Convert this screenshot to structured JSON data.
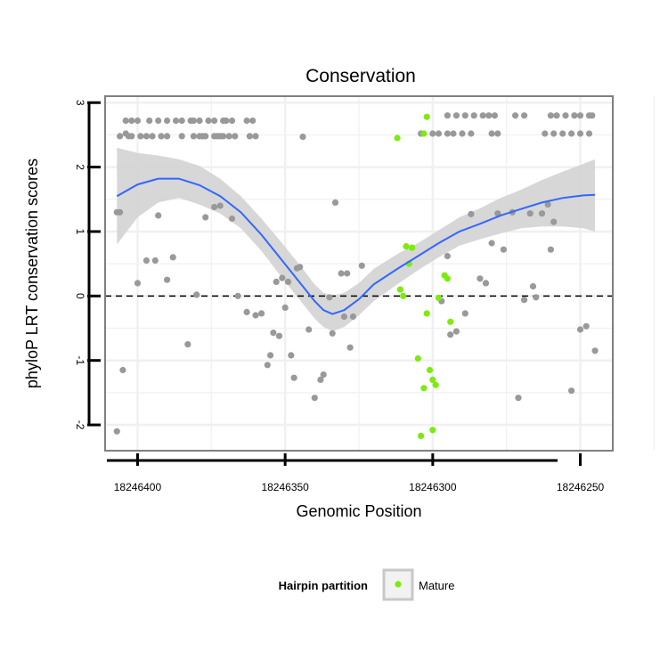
{
  "chart_data": {
    "type": "scatter",
    "title": "Conservation",
    "xlabel": "Genomic Position",
    "ylabel": "phyloP LRT conservation scores",
    "x_reversed": true,
    "xlim": [
      18246411,
      18246239
    ],
    "ylim": [
      -2.4,
      3.1
    ],
    "x_ticks": [
      18246400,
      18246350,
      18246300,
      18246250
    ],
    "x_tick_labels": [
      "18246400",
      "18246350",
      "18246300",
      "18246250"
    ],
    "y_ticks": [
      -2,
      -1,
      0,
      1,
      2,
      3
    ],
    "y_tick_labels": [
      "-2",
      "-1",
      "0",
      "1",
      "2",
      "3"
    ],
    "grid": true,
    "reference_line": {
      "y": 0,
      "style": "dashed"
    },
    "colors": {
      "other_points": "#999999",
      "mature_points": "#7CEB0E",
      "smooth_line": "#3366FF",
      "ribbon": "#D3D3D3",
      "panel_border": "#7F7F7F",
      "grid": "#F0F0F0"
    },
    "legend": {
      "title": "Hairpin partition",
      "position": "bottom",
      "entries": [
        {
          "label": "Mature",
          "color": "#7CEB0E"
        }
      ]
    },
    "series": [
      {
        "group": "other",
        "points": [
          [
            18246407,
            1.3
          ],
          [
            18246406,
            1.3
          ],
          [
            18246407,
            -2.1
          ],
          [
            18246405,
            -1.15
          ],
          [
            18246404,
            2.52
          ],
          [
            18246400,
            0.2
          ],
          [
            18246397,
            0.55
          ],
          [
            18246394,
            0.55
          ],
          [
            18246393,
            1.25
          ],
          [
            18246390,
            0.25
          ],
          [
            18246388,
            0.6
          ],
          [
            18246383,
            -0.75
          ],
          [
            18246380,
            0.02
          ],
          [
            18246377,
            1.22
          ],
          [
            18246374,
            1.38
          ],
          [
            18246372,
            1.4
          ],
          [
            18246368,
            1.2
          ],
          [
            18246366,
            0.0
          ],
          [
            18246363,
            -0.25
          ],
          [
            18246360,
            -0.3
          ],
          [
            18246358,
            -0.27
          ],
          [
            18246356,
            -1.07
          ],
          [
            18246355,
            -0.92
          ],
          [
            18246354,
            -0.57
          ],
          [
            18246353,
            0.22
          ],
          [
            18246352,
            -0.62
          ],
          [
            18246351,
            0.28
          ],
          [
            18246350,
            -0.18
          ],
          [
            18246349,
            0.22
          ],
          [
            18246348,
            -0.92
          ],
          [
            18246347,
            -1.27
          ],
          [
            18246346,
            0.43
          ],
          [
            18246345,
            0.45
          ],
          [
            18246344,
            2.47
          ],
          [
            18246342,
            -0.52
          ],
          [
            18246340,
            -1.58
          ],
          [
            18246338,
            -1.3
          ],
          [
            18246337,
            -1.22
          ],
          [
            18246335,
            -0.02
          ],
          [
            18246334,
            -0.58
          ],
          [
            18246333,
            1.45
          ],
          [
            18246331,
            0.35
          ],
          [
            18246330,
            -0.32
          ],
          [
            18246329,
            0.35
          ],
          [
            18246328,
            -0.8
          ],
          [
            18246327,
            -0.32
          ],
          [
            18246324,
            0.47
          ],
          [
            18246297,
            -0.08
          ],
          [
            18246295,
            0.62
          ],
          [
            18246294,
            -0.6
          ],
          [
            18246292,
            -0.55
          ],
          [
            18246289,
            -0.27
          ],
          [
            18246287,
            1.27
          ],
          [
            18246284,
            0.27
          ],
          [
            18246282,
            0.2
          ],
          [
            18246280,
            0.82
          ],
          [
            18246278,
            1.28
          ],
          [
            18246276,
            0.72
          ],
          [
            18246273,
            1.3
          ],
          [
            18246271,
            -1.58
          ],
          [
            18246269,
            -0.06
          ],
          [
            18246267,
            1.28
          ],
          [
            18246266,
            0.15
          ],
          [
            18246265,
            -0.02
          ],
          [
            18246263,
            1.28
          ],
          [
            18246261,
            1.42
          ],
          [
            18246260,
            0.72
          ],
          [
            18246259,
            1.15
          ],
          [
            18246253,
            -1.47
          ],
          [
            18246250,
            -0.52
          ],
          [
            18246248,
            -0.47
          ],
          [
            18246245,
            -0.85
          ],
          [
            18246404,
            2.72
          ],
          [
            18246402,
            2.72
          ],
          [
            18246400,
            2.72
          ],
          [
            18246396,
            2.72
          ],
          [
            18246393,
            2.72
          ],
          [
            18246390,
            2.72
          ],
          [
            18246387,
            2.72
          ],
          [
            18246385,
            2.72
          ],
          [
            18246382,
            2.72
          ],
          [
            18246381,
            2.72
          ],
          [
            18246379,
            2.72
          ],
          [
            18246376,
            2.72
          ],
          [
            18246374,
            2.72
          ],
          [
            18246371,
            2.72
          ],
          [
            18246370,
            2.72
          ],
          [
            18246368,
            2.72
          ],
          [
            18246363,
            2.72
          ],
          [
            18246361,
            2.72
          ],
          [
            18246406,
            2.48
          ],
          [
            18246403,
            2.48
          ],
          [
            18246402,
            2.48
          ],
          [
            18246399,
            2.48
          ],
          [
            18246397,
            2.48
          ],
          [
            18246395,
            2.48
          ],
          [
            18246392,
            2.48
          ],
          [
            18246390,
            2.48
          ],
          [
            18246385,
            2.48
          ],
          [
            18246381,
            2.48
          ],
          [
            18246379,
            2.48
          ],
          [
            18246378,
            2.48
          ],
          [
            18246377,
            2.48
          ],
          [
            18246374,
            2.48
          ],
          [
            18246373,
            2.48
          ],
          [
            18246372,
            2.48
          ],
          [
            18246371,
            2.48
          ],
          [
            18246369,
            2.48
          ],
          [
            18246367,
            2.48
          ],
          [
            18246362,
            2.48
          ],
          [
            18246360,
            2.48
          ],
          [
            18246295,
            2.8
          ],
          [
            18246292,
            2.8
          ],
          [
            18246289,
            2.8
          ],
          [
            18246286,
            2.8
          ],
          [
            18246283,
            2.8
          ],
          [
            18246281,
            2.8
          ],
          [
            18246279,
            2.8
          ],
          [
            18246272,
            2.8
          ],
          [
            18246269,
            2.8
          ],
          [
            18246260,
            2.8
          ],
          [
            18246258,
            2.8
          ],
          [
            18246255,
            2.8
          ],
          [
            18246252,
            2.8
          ],
          [
            18246250,
            2.8
          ],
          [
            18246247,
            2.8
          ],
          [
            18246246,
            2.8
          ],
          [
            18246304,
            2.52
          ],
          [
            18246300,
            2.52
          ],
          [
            18246298,
            2.52
          ],
          [
            18246295,
            2.52
          ],
          [
            18246293,
            2.52
          ],
          [
            18246290,
            2.52
          ],
          [
            18246287,
            2.52
          ],
          [
            18246280,
            2.52
          ],
          [
            18246278,
            2.52
          ],
          [
            18246262,
            2.52
          ],
          [
            18246259,
            2.52
          ],
          [
            18246256,
            2.52
          ],
          [
            18246253,
            2.52
          ],
          [
            18246250,
            2.52
          ],
          [
            18246247,
            2.52
          ]
        ]
      },
      {
        "group": "Mature",
        "points": [
          [
            18246312,
            2.45
          ],
          [
            18246309,
            0.77
          ],
          [
            18246308,
            0.5
          ],
          [
            18246307,
            0.75
          ],
          [
            18246311,
            0.1
          ],
          [
            18246310,
            0.0
          ],
          [
            18246305,
            -0.97
          ],
          [
            18246303,
            -1.43
          ],
          [
            18246301,
            -1.15
          ],
          [
            18246300,
            -1.3
          ],
          [
            18246299,
            -1.38
          ],
          [
            18246302,
            -0.27
          ],
          [
            18246304,
            -2.17
          ],
          [
            18246300,
            -2.08
          ],
          [
            18246296,
            0.32
          ],
          [
            18246295,
            0.27
          ],
          [
            18246294,
            -0.4
          ],
          [
            18246298,
            -0.03
          ],
          [
            18246303,
            2.52
          ],
          [
            18246302,
            2.78
          ]
        ]
      }
    ],
    "smooth_line": {
      "x": [
        18246407,
        18246400,
        18246393,
        18246386,
        18246379,
        18246372,
        18246365,
        18246358,
        18246351,
        18246344,
        18246340,
        18246337,
        18246334,
        18246330,
        18246325,
        18246320,
        18246312,
        18246305,
        18246298,
        18246291,
        18246284,
        18246277,
        18246270,
        18246263,
        18246256,
        18246249,
        18246245
      ],
      "y": [
        1.55,
        1.73,
        1.82,
        1.82,
        1.72,
        1.55,
        1.3,
        0.95,
        0.55,
        0.15,
        -0.08,
        -0.22,
        -0.28,
        -0.22,
        -0.05,
        0.18,
        0.42,
        0.62,
        0.82,
        1.0,
        1.12,
        1.25,
        1.35,
        1.45,
        1.52,
        1.56,
        1.57
      ],
      "ribbon_upper": [
        2.3,
        2.22,
        2.18,
        2.12,
        2.02,
        1.82,
        1.55,
        1.2,
        0.82,
        0.42,
        0.18,
        0.05,
        0.0,
        0.05,
        0.2,
        0.42,
        0.65,
        0.82,
        1.02,
        1.22,
        1.36,
        1.52,
        1.65,
        1.8,
        1.93,
        2.05,
        2.12
      ],
      "ribbon_lower": [
        0.8,
        1.22,
        1.45,
        1.52,
        1.42,
        1.28,
        1.05,
        0.7,
        0.28,
        -0.12,
        -0.35,
        -0.48,
        -0.55,
        -0.48,
        -0.3,
        -0.08,
        0.18,
        0.4,
        0.6,
        0.78,
        0.88,
        0.97,
        1.05,
        1.08,
        1.08,
        1.05,
        1.0
      ]
    }
  }
}
